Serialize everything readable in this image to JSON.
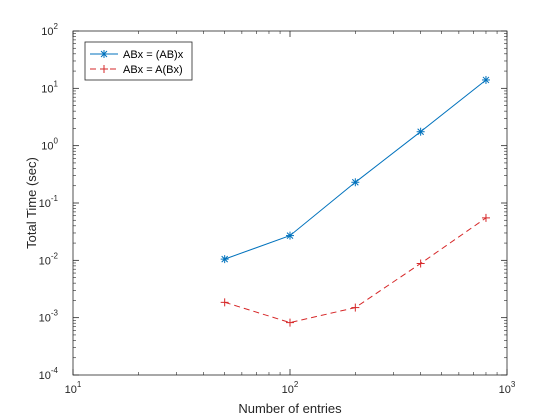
{
  "chart_data": {
    "type": "line",
    "title": "",
    "xlabel": "Number of entries",
    "ylabel": "Total Time (sec)",
    "xscale": "log",
    "yscale": "log",
    "xlim": [
      10,
      1000
    ],
    "ylim": [
      0.0001,
      100
    ],
    "grid": false,
    "legend_position": "top-left",
    "x_ticks": [
      {
        "value": 10,
        "base": "10",
        "exp": "1"
      },
      {
        "value": 100,
        "base": "10",
        "exp": "2"
      },
      {
        "value": 1000,
        "base": "10",
        "exp": "3"
      }
    ],
    "y_ticks": [
      {
        "value": 0.0001,
        "base": "10",
        "exp": "-4"
      },
      {
        "value": 0.001,
        "base": "10",
        "exp": "-3"
      },
      {
        "value": 0.01,
        "base": "10",
        "exp": "-2"
      },
      {
        "value": 0.1,
        "base": "10",
        "exp": "-1"
      },
      {
        "value": 1,
        "base": "10",
        "exp": "0"
      },
      {
        "value": 10,
        "base": "10",
        "exp": "1"
      },
      {
        "value": 100,
        "base": "10",
        "exp": "2"
      }
    ],
    "x": [
      50,
      100,
      200,
      400,
      800
    ],
    "series": [
      {
        "name": "ABx = (AB)x",
        "values": [
          0.0105,
          0.027,
          0.23,
          1.75,
          14
        ],
        "color": "#0072bd",
        "line_style": "solid",
        "marker": "asterisk"
      },
      {
        "name": "ABx = A(Bx)",
        "values": [
          0.00185,
          0.00082,
          0.0015,
          0.0088,
          0.055
        ],
        "color": "#d62728",
        "line_style": "dashed",
        "marker": "plus"
      }
    ]
  }
}
